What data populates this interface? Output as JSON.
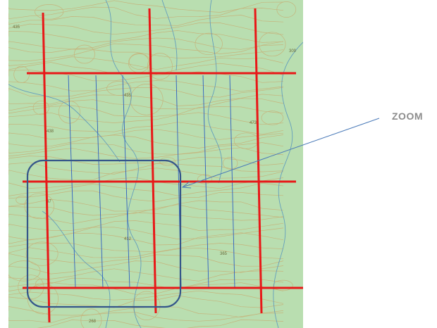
{
  "annotation": {
    "label": "ZOOM",
    "arrow_color": "#4a7ab8",
    "box_color": "#35568a"
  },
  "map": {
    "base_color": "#b9deb0",
    "contour_color": "#c9a66b",
    "stream_color": "#4f8fbf",
    "grid_color": "#e81818",
    "subgrid_color": "#2f5fc0",
    "spot_heights": [
      "435",
      "309",
      "435",
      "438",
      "473",
      "47",
      "412",
      "365",
      "268"
    ]
  }
}
